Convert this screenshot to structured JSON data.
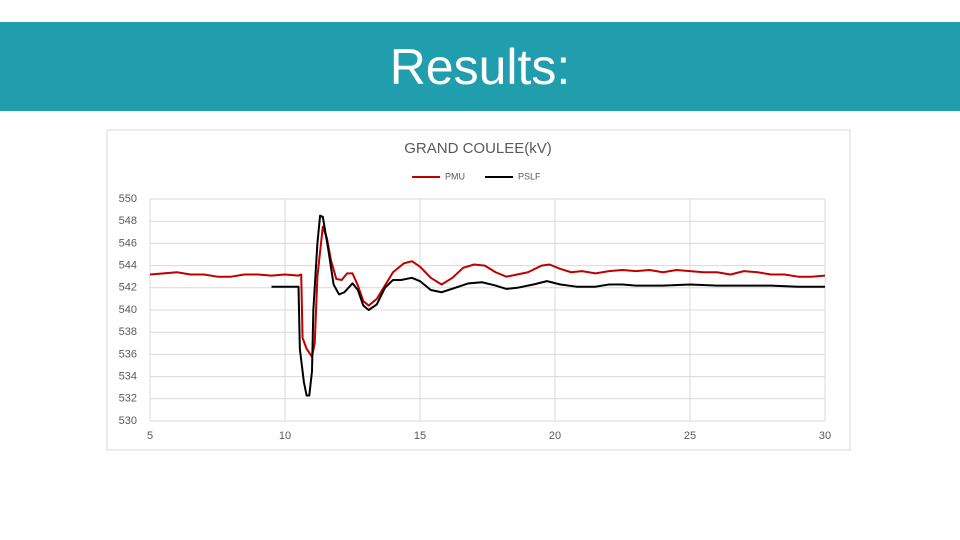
{
  "header": {
    "title": "Results:"
  },
  "chart_data": {
    "type": "line",
    "title": "GRAND COULEE(kV)",
    "xlim": [
      5,
      30
    ],
    "xticks": [
      5,
      10,
      15,
      20,
      25,
      30
    ],
    "ylim": [
      530,
      550
    ],
    "yticks": [
      530,
      532,
      534,
      536,
      538,
      540,
      542,
      544,
      546,
      548,
      550
    ],
    "grid": true,
    "legend": "top",
    "series": [
      {
        "name": "PMU",
        "color": "#c00000",
        "x": [
          5,
          5.5,
          6,
          6.5,
          7,
          7.5,
          8,
          8.5,
          9,
          9.5,
          10,
          10.5,
          10.6,
          10.65,
          10.8,
          11,
          11.1,
          11.2,
          11.4,
          11.55,
          11.7,
          11.9,
          12.1,
          12.3,
          12.5,
          12.7,
          12.9,
          13.1,
          13.4,
          13.7,
          14,
          14.4,
          14.7,
          15,
          15.4,
          15.8,
          16.2,
          16.6,
          17,
          17.4,
          17.8,
          18.2,
          18.6,
          19,
          19.5,
          19.8,
          20.2,
          20.6,
          21,
          21.5,
          22,
          22.5,
          23,
          23.5,
          24,
          24.5,
          25,
          25.5,
          26,
          26.5,
          27,
          27.5,
          28,
          28.5,
          29,
          29.5,
          30
        ],
        "values": [
          543.2,
          543.3,
          543.4,
          543.2,
          543.2,
          543.0,
          543.0,
          543.2,
          543.2,
          543.1,
          543.2,
          543.1,
          543.2,
          537.5,
          536.5,
          535.8,
          537,
          543,
          547.5,
          546.5,
          544.5,
          542.8,
          542.7,
          543.3,
          543.3,
          542.2,
          540.8,
          540.4,
          541,
          542.2,
          543.4,
          544.2,
          544.4,
          543.9,
          542.9,
          542.3,
          542.9,
          543.8,
          544.1,
          544.0,
          543.4,
          543.0,
          543.2,
          543.4,
          544.0,
          544.1,
          543.7,
          543.4,
          543.5,
          543.3,
          543.5,
          543.6,
          543.5,
          543.6,
          543.4,
          543.6,
          543.5,
          543.4,
          543.4,
          543.2,
          543.5,
          543.4,
          543.2,
          543.2,
          543.0,
          543.0,
          543.1
        ]
      },
      {
        "name": "PSLF",
        "color": "#000000",
        "x": [
          9.5,
          10,
          10.5,
          10.55,
          10.7,
          10.8,
          10.9,
          11,
          11.05,
          11.2,
          11.3,
          11.4,
          11.6,
          11.8,
          12,
          12.2,
          12.5,
          12.7,
          12.9,
          13.1,
          13.4,
          13.7,
          14,
          14.3,
          14.7,
          15,
          15.4,
          15.8,
          16.3,
          16.8,
          17.3,
          17.8,
          18.2,
          18.6,
          19.2,
          19.7,
          20.2,
          20.8,
          21.5,
          22,
          22.5,
          23,
          24,
          25,
          26,
          27,
          28,
          29,
          30
        ],
        "values": [
          542.1,
          542.1,
          542.1,
          536.5,
          533.5,
          532.3,
          532.3,
          534.5,
          540,
          546,
          548.5,
          548.4,
          545.5,
          542.3,
          541.4,
          541.6,
          542.4,
          541.8,
          540.4,
          540.0,
          540.5,
          542.0,
          542.7,
          542.7,
          542.9,
          542.6,
          541.8,
          541.6,
          542.0,
          542.4,
          542.5,
          542.2,
          541.9,
          542.0,
          542.3,
          542.6,
          542.3,
          542.1,
          542.1,
          542.3,
          542.3,
          542.2,
          542.2,
          542.3,
          542.2,
          542.2,
          542.2,
          542.1,
          542.1
        ]
      }
    ]
  }
}
